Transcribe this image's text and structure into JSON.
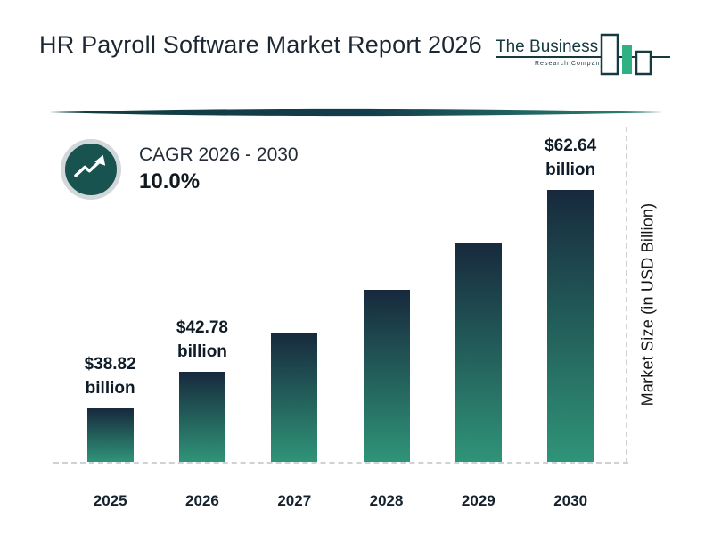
{
  "header": {
    "title": "HR Payroll Software Market Report 2026",
    "logo": {
      "line1": "The Business",
      "line2": "Research Company"
    }
  },
  "cagr": {
    "label": "CAGR 2026 - 2030",
    "value": "10.0%"
  },
  "chart_data": {
    "type": "bar",
    "title": "HR Payroll Software Market Report 2026",
    "categories": [
      "2025",
      "2026",
      "2027",
      "2028",
      "2029",
      "2030"
    ],
    "values": [
      38.82,
      42.78,
      47.06,
      51.76,
      56.94,
      62.64
    ],
    "unit": "USD Billion",
    "ylabel": "Market Size (in USD Billion)",
    "data_labels": [
      {
        "category": "2025",
        "line1": "$38.82",
        "line2": "billion"
      },
      {
        "category": "2026",
        "line1": "$42.78",
        "line2": "billion"
      },
      {
        "category": "2030",
        "line1": "$62.64",
        "line2": "billion"
      }
    ],
    "cagr_percent": "10.0%",
    "colors": {
      "bar_top": "#17293d",
      "bar_bottom": "#2f9478",
      "accent_teal": "#185350",
      "logo_green": "#2fb184"
    },
    "legend": "none",
    "grid": "off",
    "baseline_style": "dashed",
    "ylim_visual": [
      33,
      64
    ]
  }
}
